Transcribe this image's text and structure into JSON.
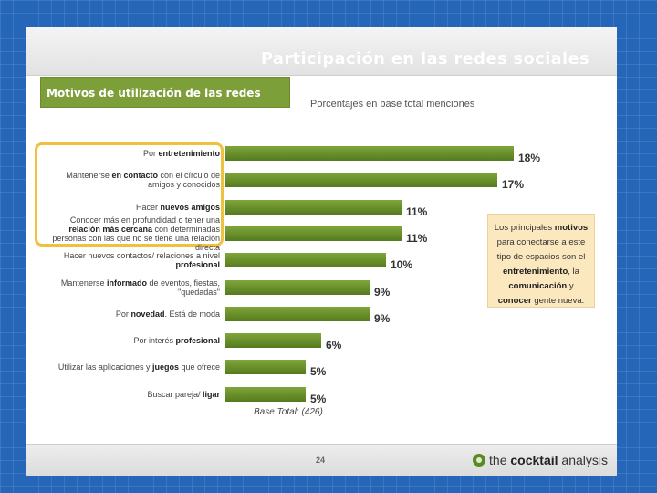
{
  "slide": {
    "title": "Participación en las redes sociales",
    "section_title": "Motivos de utilización de las redes sociales",
    "subtitle": "Porcentajes en base total menciones",
    "base_note": "Base Total: (426)",
    "page_number": "24",
    "logo": {
      "prefix": "the ",
      "bold": "cocktail",
      "suffix": " analysis"
    },
    "callout": {
      "t1": "Los principales ",
      "b1": "motivos",
      "t2": " para conectarse a este tipo de espacios son el ",
      "b2": "entretenimiento",
      "t3": ", la ",
      "b3": "comunicación",
      "t4": " y ",
      "b4": "conocer",
      "t5": " gente nueva."
    }
  },
  "chart_data": {
    "type": "bar",
    "orientation": "horizontal",
    "title": "Motivos de utilización de las redes sociales",
    "subtitle": "Porcentajes en base total menciones",
    "unit": "%",
    "categories": [
      {
        "pre": "Por ",
        "bold": "entretenimiento",
        "post": ""
      },
      {
        "pre": "Mantenerse ",
        "bold": "en contacto",
        "post": " con el círculo de amigos y conocidos"
      },
      {
        "pre": "Hacer ",
        "bold": "nuevos amigos",
        "post": ""
      },
      {
        "pre": "Conocer más en profundidad o tener una ",
        "bold": "relación más cercana",
        "post": " con determinadas personas con las que no se tiene una relación directa"
      },
      {
        "pre": "Hacer nuevos contactos/ relaciones a nivel ",
        "bold": "profesional",
        "post": ""
      },
      {
        "pre": "Mantenerse ",
        "bold": "informado",
        "post": " de eventos, fiestas, \"quedadas\""
      },
      {
        "pre": "Por ",
        "bold": "novedad",
        "post": ". Está de moda"
      },
      {
        "pre": "Por interés ",
        "bold": "profesional",
        "post": ""
      },
      {
        "pre": "Utilizar las aplicaciones y ",
        "bold": "juegos",
        "post": " que ofrece"
      },
      {
        "pre": "Buscar pareja/ ",
        "bold": "ligar",
        "post": ""
      }
    ],
    "values": [
      18,
      17,
      11,
      11,
      10,
      9,
      9,
      6,
      5,
      5
    ],
    "value_labels": [
      "18%",
      "17%",
      "11%",
      "11%",
      "10%",
      "9%",
      "9%",
      "6%",
      "5%",
      "5%"
    ],
    "highlighted_categories": 4,
    "xlim": [
      0,
      18
    ],
    "legend": "none",
    "grid": false
  }
}
